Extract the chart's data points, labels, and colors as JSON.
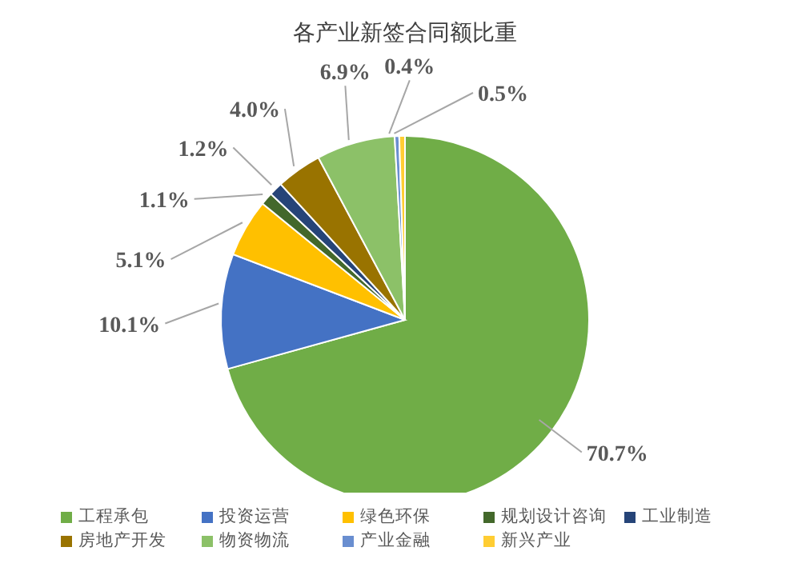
{
  "chart_data": {
    "type": "pie",
    "title": "各产业新签合同额比重",
    "categories": [
      "工程承包",
      "投资运营",
      "绿色环保",
      "规划设计咨询",
      "工业制造",
      "房地产开发",
      "物资物流",
      "产业金融",
      "新兴产业"
    ],
    "values": [
      70.7,
      10.1,
      5.1,
      1.1,
      1.2,
      4.0,
      6.9,
      0.4,
      0.5
    ],
    "value_labels": [
      "70.7%",
      "10.1%",
      "5.1%",
      "1.1%",
      "1.2%",
      "4.0%",
      "6.9%",
      "0.4%",
      "0.5%"
    ],
    "colors": [
      "#70ad47",
      "#4472c4",
      "#ffc000",
      "#43682b",
      "#264478",
      "#997300",
      "#8cc168",
      "#698ed0",
      "#ffcd33"
    ],
    "legend": "bottom"
  }
}
